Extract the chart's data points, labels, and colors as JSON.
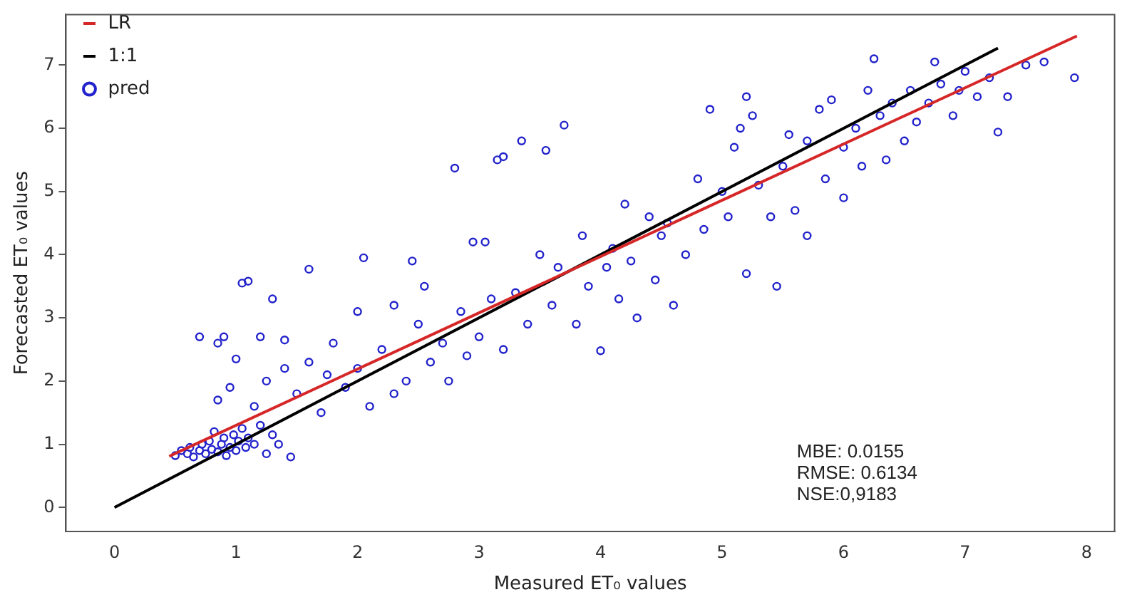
{
  "chart_data": {
    "type": "scatter",
    "xlabel": "Measured ET₀ values",
    "ylabel": "Forecasted ET₀ values",
    "xlim": [
      -0.4,
      8.23
    ],
    "ylim": [
      -0.38,
      7.8
    ],
    "xticks": [
      0,
      1,
      2,
      3,
      4,
      5,
      6,
      7,
      8
    ],
    "yticks": [
      0,
      1,
      2,
      3,
      4,
      5,
      6,
      7
    ],
    "grid": false,
    "legend": "top left",
    "annotations": [
      "MBE: 0.0155",
      "RMSE: 0.6134",
      "NSE:0,9183"
    ],
    "series": [
      {
        "name": "LR",
        "type": "line",
        "color": "#d62728",
        "line_style": "solid",
        "x": [
          0.45,
          7.92
        ],
        "values": [
          0.81,
          7.46
        ]
      },
      {
        "name": "1:1",
        "type": "line",
        "color": "#000000",
        "line_style": "solid",
        "x": [
          0,
          7.27
        ],
        "values": [
          0,
          7.27
        ]
      },
      {
        "name": "pred",
        "type": "scatter",
        "color": "#2222cc",
        "marker": "circle",
        "x": [
          0.5,
          0.55,
          0.6,
          0.62,
          0.65,
          0.7,
          0.72,
          0.75,
          0.78,
          0.8,
          0.82,
          0.85,
          0.88,
          0.9,
          0.92,
          0.95,
          0.98,
          1.0,
          1.02,
          1.05,
          1.08,
          1.1,
          1.15,
          1.2,
          1.25,
          1.3,
          1.35,
          1.45,
          0.7,
          0.85,
          0.9,
          1.0,
          1.05,
          1.1,
          1.2,
          1.3,
          1.4,
          0.85,
          0.95,
          1.15,
          1.25,
          1.4,
          1.5,
          1.6,
          1.6,
          1.7,
          1.75,
          1.8,
          1.9,
          2.0,
          2.0,
          2.05,
          2.1,
          2.2,
          2.3,
          2.3,
          2.4,
          2.45,
          2.5,
          2.55,
          2.6,
          2.7,
          2.75,
          2.8,
          2.85,
          2.9,
          2.95,
          3.0,
          3.05,
          3.1,
          3.15,
          3.2,
          3.2,
          3.3,
          3.35,
          3.4,
          3.5,
          3.55,
          3.6,
          3.65,
          3.7,
          3.8,
          3.85,
          3.9,
          4.0,
          4.05,
          4.1,
          4.15,
          4.2,
          4.25,
          4.3,
          4.4,
          4.45,
          4.5,
          4.55,
          4.6,
          4.7,
          4.8,
          4.85,
          4.9,
          5.0,
          5.05,
          5.1,
          5.15,
          5.2,
          5.2,
          5.25,
          5.3,
          5.4,
          5.45,
          5.5,
          5.55,
          5.6,
          5.7,
          5.7,
          5.8,
          5.85,
          5.9,
          6.0,
          6.0,
          6.1,
          6.15,
          6.2,
          6.25,
          6.3,
          6.35,
          6.4,
          6.5,
          6.55,
          6.6,
          6.7,
          6.75,
          6.8,
          6.9,
          6.95,
          7.0,
          7.1,
          7.2,
          7.27,
          7.35,
          7.5,
          7.65,
          7.9
        ],
        "values": [
          0.82,
          0.9,
          0.85,
          0.95,
          0.8,
          0.9,
          1.0,
          0.85,
          1.05,
          0.92,
          1.2,
          0.88,
          1.0,
          1.1,
          0.82,
          0.95,
          1.15,
          0.9,
          1.05,
          1.25,
          0.95,
          1.1,
          1.0,
          1.3,
          0.85,
          1.15,
          1.0,
          0.8,
          2.7,
          2.6,
          2.7,
          2.35,
          3.55,
          3.58,
          2.7,
          3.3,
          2.65,
          1.7,
          1.9,
          1.6,
          2.0,
          2.2,
          1.8,
          2.3,
          3.77,
          1.5,
          2.1,
          2.6,
          1.9,
          2.2,
          3.1,
          3.95,
          1.6,
          2.5,
          3.2,
          1.8,
          2.0,
          3.9,
          2.9,
          3.5,
          2.3,
          2.6,
          2.0,
          5.37,
          3.1,
          2.4,
          4.2,
          2.7,
          4.2,
          3.3,
          5.5,
          5.55,
          2.5,
          3.4,
          5.8,
          2.9,
          4.0,
          5.65,
          3.2,
          3.8,
          6.05,
          2.9,
          4.3,
          3.5,
          2.48,
          3.8,
          4.1,
          3.3,
          4.8,
          3.9,
          3.0,
          4.6,
          3.6,
          4.3,
          4.5,
          3.2,
          4.0,
          5.2,
          4.4,
          6.3,
          5.0,
          4.6,
          5.7,
          6.0,
          6.5,
          3.7,
          6.2,
          5.1,
          4.6,
          3.5,
          5.4,
          5.9,
          4.7,
          5.8,
          4.3,
          6.3,
          5.2,
          6.45,
          4.9,
          5.7,
          6.0,
          5.4,
          6.6,
          7.1,
          6.2,
          5.5,
          6.4,
          5.8,
          6.6,
          6.1,
          6.4,
          7.05,
          6.7,
          6.2,
          6.6,
          6.9,
          6.5,
          6.8,
          5.94,
          6.5,
          7.0,
          7.05,
          6.8
        ]
      }
    ]
  }
}
